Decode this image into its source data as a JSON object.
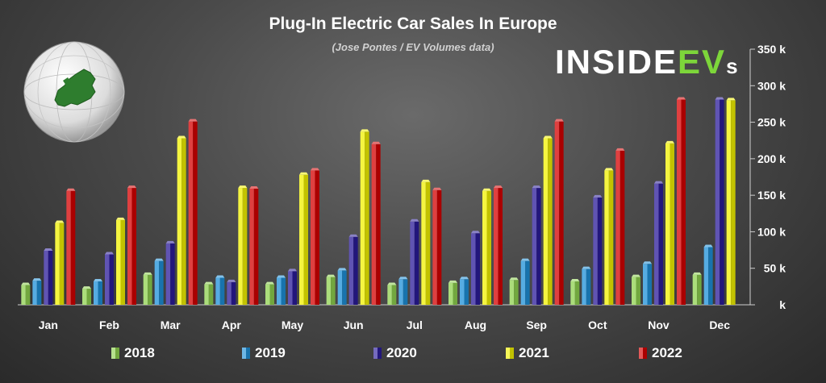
{
  "chart_data": {
    "type": "bar",
    "title": "Plug-In Electric Car Sales In Europe",
    "subtitle": "(Jose Pontes / EV Volumes data)",
    "categories": [
      "Jan",
      "Feb",
      "Mar",
      "Apr",
      "May",
      "Jun",
      "Jul",
      "Aug",
      "Sep",
      "Oct",
      "Nov",
      "Dec"
    ],
    "series": [
      {
        "name": "2018",
        "color": "#8fd14f",
        "values": [
          27,
          22,
          41,
          28,
          28,
          38,
          27,
          30,
          34,
          32,
          38,
          41
        ]
      },
      {
        "name": "2019",
        "color": "#1e90d8",
        "values": [
          33,
          32,
          60,
          37,
          37,
          47,
          35,
          35,
          60,
          49,
          56,
          79
        ]
      },
      {
        "name": "2020",
        "color": "#2b1b9a",
        "values": [
          74,
          69,
          84,
          31,
          46,
          93,
          114,
          98,
          160,
          147,
          166,
          281
        ]
      },
      {
        "name": "2021",
        "color": "#f2f200",
        "values": [
          112,
          116,
          228,
          160,
          178,
          237,
          168,
          156,
          228,
          184,
          221,
          280
        ]
      },
      {
        "name": "2022",
        "color": "#d40000",
        "values": [
          156,
          160,
          251,
          159,
          184,
          220,
          157,
          160,
          251,
          211,
          281,
          null
        ]
      }
    ],
    "ylim": [
      0,
      350
    ],
    "yticks": [
      0,
      50,
      100,
      150,
      200,
      250,
      300,
      350
    ],
    "ytick_labels": [
      "k",
      "50 k",
      "100 k",
      "150 k",
      "200 k",
      "250 k",
      "300 k",
      "350 k"
    ],
    "legend_position": "bottom"
  },
  "brand": {
    "logo_main": "INSIDE",
    "logo_ev": "EV",
    "logo_s": "s"
  }
}
